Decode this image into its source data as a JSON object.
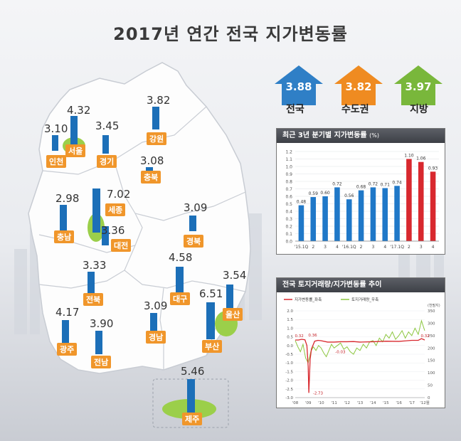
{
  "title": "2017년 연간 전국 지가변동률",
  "badges": [
    {
      "value": "3.88",
      "label": "전국",
      "color": "#2f7fc6"
    },
    {
      "value": "3.82",
      "label": "수도권",
      "color": "#ef8b21"
    },
    {
      "value": "3.97",
      "label": "지방",
      "color": "#79b73b"
    }
  ],
  "regions": [
    {
      "name": "서울",
      "value": "4.32"
    },
    {
      "name": "인천",
      "value": "3.10"
    },
    {
      "name": "경기",
      "value": "3.45"
    },
    {
      "name": "강원",
      "value": "3.82"
    },
    {
      "name": "충북",
      "value": "3.08"
    },
    {
      "name": "세종",
      "value": "7.02"
    },
    {
      "name": "충남",
      "value": "2.98"
    },
    {
      "name": "대전",
      "value": "3.36"
    },
    {
      "name": "경북",
      "value": "3.09"
    },
    {
      "name": "전북",
      "value": "3.33"
    },
    {
      "name": "대구",
      "value": "4.58"
    },
    {
      "name": "울산",
      "value": "3.54"
    },
    {
      "name": "광주",
      "value": "4.17"
    },
    {
      "name": "전남",
      "value": "3.90"
    },
    {
      "name": "경남",
      "value": "3.09"
    },
    {
      "name": "부산",
      "value": "6.51"
    },
    {
      "name": "제주",
      "value": "5.46"
    }
  ],
  "chart_data": [
    {
      "type": "bar",
      "title": "최근 3년 분기별 지가변동률",
      "unit": "(%)",
      "categories": [
        "'15.1Q",
        "2",
        "3",
        "4",
        "'16.1Q",
        "2",
        "3",
        "4",
        "'17.1Q",
        "2",
        "3",
        "4"
      ],
      "values": [
        0.48,
        0.59,
        0.6,
        0.72,
        0.56,
        0.68,
        0.72,
        0.71,
        0.74,
        1.1,
        1.06,
        0.93
      ],
      "value_labels": [
        "0.48",
        "0.59",
        "0.60",
        "0.72",
        "0.56",
        "0.68",
        "0.72",
        "0.71",
        "0.74",
        "1.10",
        "1.06",
        "0.93"
      ],
      "colors": [
        "#1f78c8",
        "#1f78c8",
        "#1f78c8",
        "#1f78c8",
        "#1f78c8",
        "#1f78c8",
        "#1f78c8",
        "#1f78c8",
        "#1f78c8",
        "#d8282e",
        "#d8282e",
        "#d8282e"
      ],
      "yticks": [
        "0.0",
        "0.1",
        "0.2",
        "0.3",
        "0.4",
        "0.5",
        "0.6",
        "0.7",
        "0.8",
        "0.9",
        "1.0",
        "1.1",
        "1.2"
      ],
      "ylim": [
        0,
        1.2
      ],
      "grid": true
    },
    {
      "type": "line",
      "title": "전국 토지거래량/지가변동률 추이",
      "series": [
        {
          "name": "지가변동률_좌축",
          "color": "#d8282e",
          "axis": "left",
          "x": [
            2008.0,
            2008.25,
            2008.5,
            2008.75,
            2008.9,
            2009.0,
            2009.05,
            2009.15,
            2009.25,
            2009.5,
            2009.75,
            2010.0,
            2010.5,
            2011.0,
            2011.5,
            2012.0,
            2012.5,
            2013.0,
            2014.0,
            2015.0,
            2016.0,
            2016.5,
            2017.0,
            2017.5,
            2017.75,
            2018.0
          ],
          "y": [
            0.32,
            0.32,
            0.36,
            0.33,
            0.0,
            -1.2,
            -2.73,
            -0.8,
            -0.2,
            0.25,
            0.3,
            0.28,
            0.2,
            0.2,
            0.22,
            0.22,
            0.23,
            0.2,
            0.22,
            0.25,
            0.24,
            0.27,
            0.3,
            0.3,
            0.4,
            0.32
          ]
        },
        {
          "name": "토지거래량_우축",
          "color": "#8cc63f",
          "axis": "right",
          "x": [
            2008.0,
            2008.2,
            2008.4,
            2008.6,
            2008.8,
            2009.0,
            2009.2,
            2009.4,
            2009.6,
            2009.8,
            2010.0,
            2010.2,
            2010.4,
            2010.6,
            2010.8,
            2011.0,
            2011.25,
            2011.5,
            2011.75,
            2012.0,
            2012.25,
            2012.5,
            2012.75,
            2013.0,
            2013.25,
            2013.5,
            2013.75,
            2014.0,
            2014.25,
            2014.5,
            2014.75,
            2015.0,
            2015.25,
            2015.5,
            2015.75,
            2016.0,
            2016.25,
            2016.5,
            2016.75,
            2017.0,
            2017.25,
            2017.5,
            2017.75,
            2018.0
          ],
          "y": [
            230,
            205,
            185,
            215,
            160,
            140,
            185,
            205,
            190,
            210,
            200,
            180,
            165,
            190,
            215,
            200,
            210,
            220,
            195,
            205,
            185,
            175,
            200,
            190,
            215,
            200,
            225,
            230,
            210,
            240,
            225,
            255,
            240,
            265,
            235,
            250,
            270,
            240,
            265,
            250,
            280,
            255,
            310,
            270
          ]
        }
      ],
      "annotations": [
        "0.32",
        "0.36",
        "-0.03",
        "-2.73",
        "0.32"
      ],
      "x_ticks": [
        "'08",
        "'09",
        "'10",
        "'11",
        "'12",
        "'13",
        "'14",
        "'15",
        "'16",
        "'17",
        "'12월"
      ],
      "y_left_ticks": [
        "2.0",
        "1.5",
        "1.0",
        "0.5",
        "0.0",
        "-0.5",
        "-1.0",
        "-1.5",
        "-2.0",
        "-2.5",
        "-3.0"
      ],
      "y_right_ticks": [
        "350",
        "300",
        "250",
        "200",
        "150",
        "100",
        "50",
        "0"
      ],
      "y_right_unit": "(천필지)",
      "ylim_left": [
        -3.0,
        2.0
      ],
      "ylim_right": [
        0,
        350
      ],
      "xlim": [
        2008,
        2018
      ]
    }
  ]
}
